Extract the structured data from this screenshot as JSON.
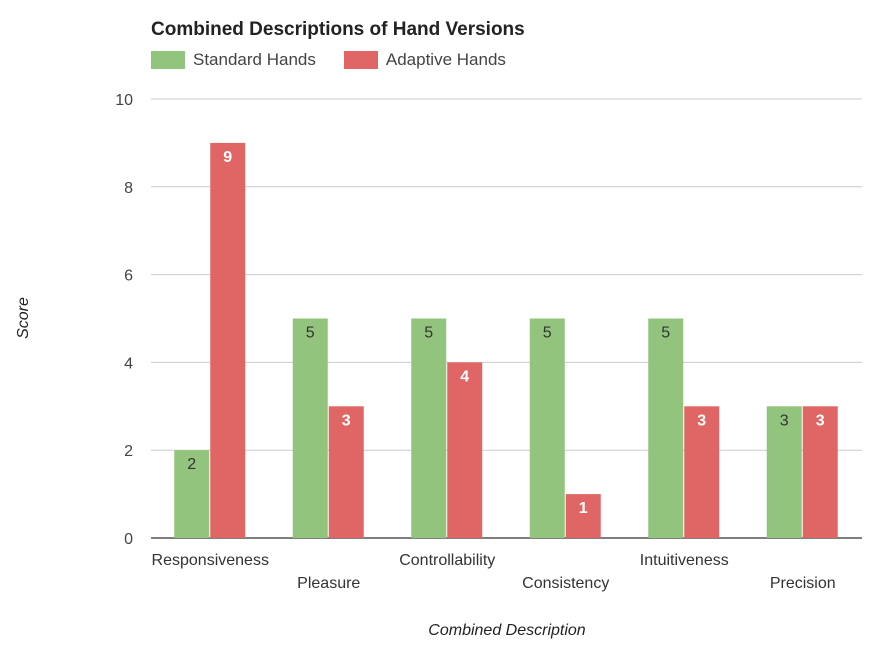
{
  "chart_data": {
    "type": "bar",
    "title": "Combined Descriptions of Hand Versions",
    "xlabel": "Combined Description",
    "ylabel": "Score",
    "ylim": [
      0,
      10
    ],
    "yticks": [
      "0",
      "2",
      "4",
      "6",
      "8",
      "10"
    ],
    "grid": true,
    "legend_position": "top-left",
    "categories": [
      "Responsiveness",
      "Pleasure",
      "Controllability",
      "Consistency",
      "Intuitiveness",
      "Precision"
    ],
    "series": [
      {
        "name": "Standard Hands",
        "color": "#93c47d",
        "values": [
          2,
          5,
          5,
          5,
          5,
          3
        ]
      },
      {
        "name": "Adaptive Hands",
        "color": "#e06666",
        "values": [
          9,
          3,
          4,
          1,
          3,
          3
        ]
      }
    ]
  }
}
